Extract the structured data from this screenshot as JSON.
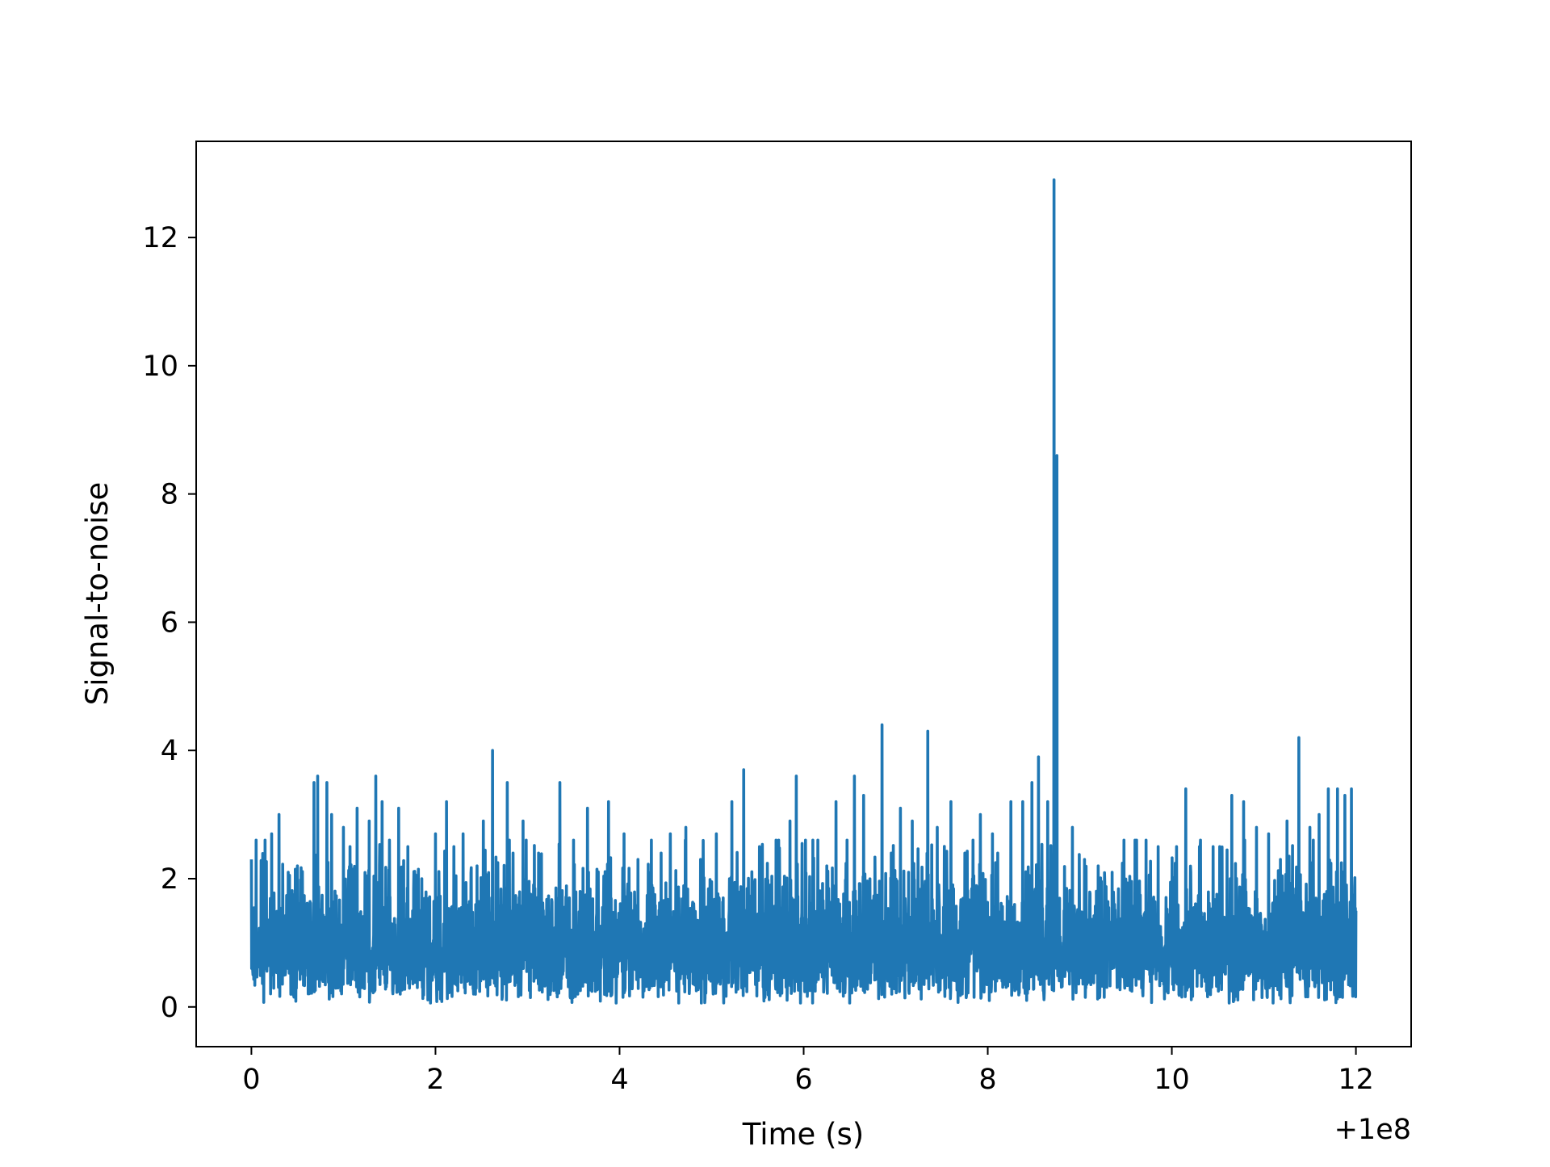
{
  "chart_data": {
    "type": "line",
    "title": "",
    "xlabel": "Time (s)",
    "ylabel": "Signal-to-noise",
    "x_offset_label": "+1e8",
    "xlim": [
      -0.6,
      12.6
    ],
    "ylim": [
      -0.62,
      13.5
    ],
    "x_ticks": [
      0,
      2,
      4,
      6,
      8,
      10,
      12
    ],
    "x_tick_labels": [
      "0",
      "2",
      "4",
      "6",
      "8",
      "10",
      "12"
    ],
    "y_ticks": [
      0,
      2,
      4,
      6,
      8,
      10,
      12
    ],
    "y_tick_labels": [
      "0",
      "2",
      "4",
      "6",
      "8",
      "10",
      "12"
    ],
    "grid": false,
    "legend": "none",
    "line_color": "#1f77b4",
    "x_range": [
      0,
      12
    ],
    "peaks": [
      {
        "x": 0.0,
        "y": 2.3
      },
      {
        "x": 0.05,
        "y": 2.6
      },
      {
        "x": 0.15,
        "y": 2.6
      },
      {
        "x": 0.22,
        "y": 2.7
      },
      {
        "x": 0.3,
        "y": 3.0
      },
      {
        "x": 0.4,
        "y": 2.1
      },
      {
        "x": 0.5,
        "y": 2.2
      },
      {
        "x": 0.68,
        "y": 3.5
      },
      {
        "x": 0.72,
        "y": 3.6
      },
      {
        "x": 0.82,
        "y": 3.5
      },
      {
        "x": 0.87,
        "y": 3.0
      },
      {
        "x": 1.0,
        "y": 2.8
      },
      {
        "x": 1.07,
        "y": 2.5
      },
      {
        "x": 1.15,
        "y": 3.1
      },
      {
        "x": 1.28,
        "y": 2.9
      },
      {
        "x": 1.35,
        "y": 3.6
      },
      {
        "x": 1.42,
        "y": 3.2
      },
      {
        "x": 1.6,
        "y": 3.1
      },
      {
        "x": 1.7,
        "y": 2.5
      },
      {
        "x": 1.85,
        "y": 2.0
      },
      {
        "x": 2.0,
        "y": 2.7
      },
      {
        "x": 2.12,
        "y": 3.2
      },
      {
        "x": 2.2,
        "y": 2.5
      },
      {
        "x": 2.3,
        "y": 2.7
      },
      {
        "x": 2.45,
        "y": 2.2
      },
      {
        "x": 2.52,
        "y": 2.9
      },
      {
        "x": 2.62,
        "y": 4.0
      },
      {
        "x": 2.78,
        "y": 3.5
      },
      {
        "x": 2.95,
        "y": 2.9
      },
      {
        "x": 3.12,
        "y": 2.4
      },
      {
        "x": 3.35,
        "y": 3.5
      },
      {
        "x": 3.5,
        "y": 2.6
      },
      {
        "x": 3.65,
        "y": 3.1
      },
      {
        "x": 3.88,
        "y": 3.2
      },
      {
        "x": 4.05,
        "y": 2.7
      },
      {
        "x": 4.2,
        "y": 2.3
      },
      {
        "x": 4.35,
        "y": 1.9
      },
      {
        "x": 4.45,
        "y": 2.4
      },
      {
        "x": 4.55,
        "y": 2.7
      },
      {
        "x": 4.72,
        "y": 2.8
      },
      {
        "x": 4.88,
        "y": 2.3
      },
      {
        "x": 5.05,
        "y": 2.7
      },
      {
        "x": 5.22,
        "y": 3.2
      },
      {
        "x": 5.35,
        "y": 3.7
      },
      {
        "x": 5.52,
        "y": 2.5
      },
      {
        "x": 5.72,
        "y": 2.3
      },
      {
        "x": 5.85,
        "y": 2.9
      },
      {
        "x": 5.92,
        "y": 3.6
      },
      {
        "x": 6.1,
        "y": 2.6
      },
      {
        "x": 6.25,
        "y": 2.2
      },
      {
        "x": 6.35,
        "y": 3.2
      },
      {
        "x": 6.47,
        "y": 2.6
      },
      {
        "x": 6.55,
        "y": 3.6
      },
      {
        "x": 6.65,
        "y": 3.3
      },
      {
        "x": 6.85,
        "y": 4.4
      },
      {
        "x": 6.95,
        "y": 2.4
      },
      {
        "x": 7.05,
        "y": 3.1
      },
      {
        "x": 7.18,
        "y": 2.9
      },
      {
        "x": 7.35,
        "y": 4.3
      },
      {
        "x": 7.45,
        "y": 2.8
      },
      {
        "x": 7.6,
        "y": 3.2
      },
      {
        "x": 7.75,
        "y": 2.4
      },
      {
        "x": 7.92,
        "y": 3.0
      },
      {
        "x": 8.05,
        "y": 2.7
      },
      {
        "x": 8.25,
        "y": 3.2
      },
      {
        "x": 8.38,
        "y": 3.2
      },
      {
        "x": 8.48,
        "y": 3.5
      },
      {
        "x": 8.55,
        "y": 3.9
      },
      {
        "x": 8.65,
        "y": 3.2
      },
      {
        "x": 8.72,
        "y": 12.9
      },
      {
        "x": 8.75,
        "y": 8.6
      },
      {
        "x": 8.92,
        "y": 2.8
      },
      {
        "x": 9.05,
        "y": 2.3
      },
      {
        "x": 9.2,
        "y": 2.2
      },
      {
        "x": 9.35,
        "y": 2.1
      },
      {
        "x": 9.48,
        "y": 2.6
      },
      {
        "x": 9.6,
        "y": 2.6
      },
      {
        "x": 9.72,
        "y": 2.6
      },
      {
        "x": 9.85,
        "y": 2.5
      },
      {
        "x": 10.05,
        "y": 2.5
      },
      {
        "x": 10.15,
        "y": 3.4
      },
      {
        "x": 10.3,
        "y": 2.5
      },
      {
        "x": 10.45,
        "y": 2.5
      },
      {
        "x": 10.52,
        "y": 2.5
      },
      {
        "x": 10.65,
        "y": 3.3
      },
      {
        "x": 10.78,
        "y": 3.2
      },
      {
        "x": 10.92,
        "y": 2.8
      },
      {
        "x": 11.05,
        "y": 2.7
      },
      {
        "x": 11.18,
        "y": 2.3
      },
      {
        "x": 11.25,
        "y": 2.9
      },
      {
        "x": 11.38,
        "y": 4.2
      },
      {
        "x": 11.5,
        "y": 2.8
      },
      {
        "x": 11.6,
        "y": 3.0
      },
      {
        "x": 11.7,
        "y": 3.4
      },
      {
        "x": 11.8,
        "y": 3.4
      },
      {
        "x": 11.88,
        "y": 3.3
      },
      {
        "x": 11.95,
        "y": 3.4
      },
      {
        "x": 12.0,
        "y": 1.5
      }
    ]
  }
}
